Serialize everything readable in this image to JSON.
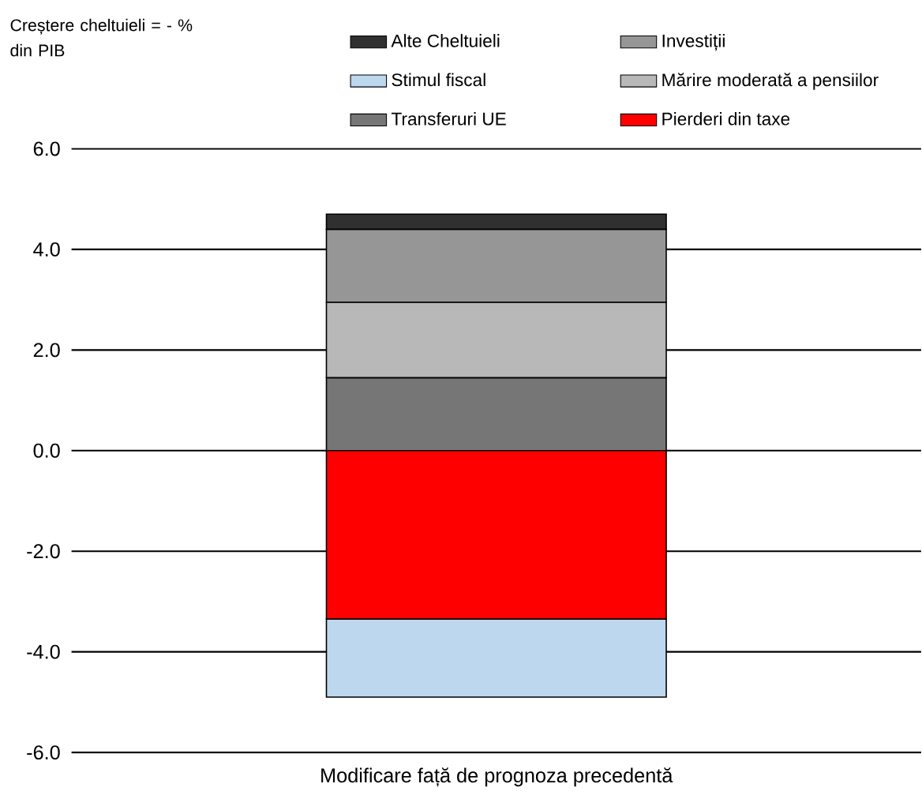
{
  "chart_data": {
    "type": "bar",
    "stacked": true,
    "annotations": [
      "Creștere cheltuieli = - % din PIB"
    ],
    "categories": [
      "Modificare față de prognoza precedentă"
    ],
    "series": [
      {
        "name": "Transferuri UE",
        "color": "#767676",
        "values": [
          1.45
        ]
      },
      {
        "name": "Mărire moderată a pensiilor",
        "color": "#b8b8b8",
        "values": [
          1.5
        ]
      },
      {
        "name": "Investiții",
        "color": "#969696",
        "values": [
          1.45
        ]
      },
      {
        "name": "Alte Cheltuieli",
        "color": "#303030",
        "values": [
          0.3
        ]
      },
      {
        "name": "Pierderi din taxe",
        "color": "#ff0000",
        "values": [
          -3.35
        ]
      },
      {
        "name": "Stimul fiscal",
        "color": "#bdd7ee",
        "values": [
          -1.55
        ]
      }
    ],
    "ylim": [
      -6,
      6
    ],
    "yticks": [
      {
        "value": -6,
        "label": "-6.0"
      },
      {
        "value": -4,
        "label": "-4.0"
      },
      {
        "value": -2,
        "label": "-2.0"
      },
      {
        "value": 0,
        "label": "0.0"
      },
      {
        "value": 2,
        "label": "2.0"
      },
      {
        "value": 4,
        "label": "4.0"
      },
      {
        "value": 6,
        "label": "6.0"
      }
    ],
    "grid": "y",
    "legend": "top"
  }
}
